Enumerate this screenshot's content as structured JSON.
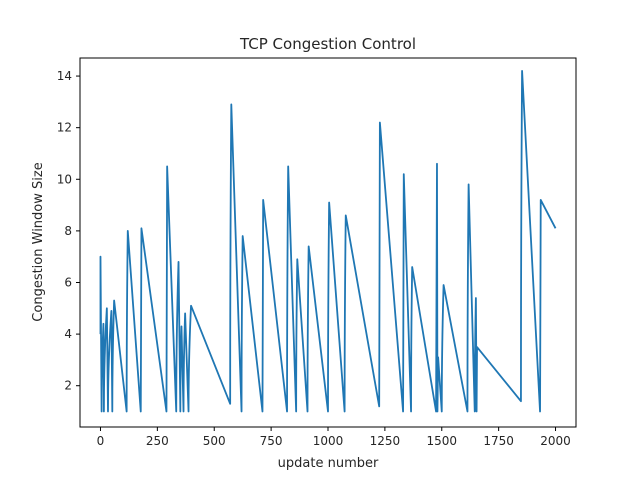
{
  "chart_data": {
    "type": "line",
    "title": "TCP Congestion Control",
    "xlabel": "update number",
    "ylabel": "Congestion Window Size",
    "xlim": [
      -90,
      2090
    ],
    "ylim": [
      0.4,
      14.7
    ],
    "x_ticks": [
      0,
      250,
      500,
      750,
      1000,
      1250,
      1500,
      1750,
      2000
    ],
    "y_ticks": [
      2,
      4,
      6,
      8,
      10,
      12,
      14
    ],
    "grid": false,
    "line_color": "#1f77b4",
    "cycles": [
      [
        0,
        4.0
      ],
      [
        0,
        7.0
      ],
      [
        5,
        1.0
      ],
      [
        13,
        4.4
      ],
      [
        15,
        1.0
      ],
      [
        28,
        5.0
      ],
      [
        33,
        1.0
      ],
      [
        48,
        4.9
      ],
      [
        52,
        1.0
      ],
      [
        60,
        5.3
      ],
      [
        115,
        1.0
      ],
      [
        120,
        8.0
      ],
      [
        177,
        1.0
      ],
      [
        180,
        8.1
      ],
      [
        290,
        1.0
      ],
      [
        293,
        10.5
      ],
      [
        333,
        1.0
      ],
      [
        343,
        6.8
      ],
      [
        351,
        1.0
      ],
      [
        356,
        4.3
      ],
      [
        365,
        1.0
      ],
      [
        372,
        4.8
      ],
      [
        387,
        1.0
      ],
      [
        398,
        5.1
      ],
      [
        570,
        1.3
      ],
      [
        575,
        12.9
      ],
      [
        620,
        1.0
      ],
      [
        625,
        7.8
      ],
      [
        712,
        1.0
      ],
      [
        715,
        9.2
      ],
      [
        820,
        1.0
      ],
      [
        825,
        10.5
      ],
      [
        860,
        1.0
      ],
      [
        865,
        6.9
      ],
      [
        910,
        1.0
      ],
      [
        915,
        7.4
      ],
      [
        1000,
        1.0
      ],
      [
        1005,
        9.1
      ],
      [
        1073,
        1.0
      ],
      [
        1078,
        8.6
      ],
      [
        1225,
        1.2
      ],
      [
        1228,
        12.2
      ],
      [
        1330,
        1.0
      ],
      [
        1333,
        10.2
      ],
      [
        1365,
        1.0
      ],
      [
        1370,
        6.6
      ],
      [
        1475,
        1.0
      ],
      [
        1479,
        10.6
      ],
      [
        1481,
        1.0
      ],
      [
        1484,
        3.1
      ],
      [
        1500,
        1.0
      ],
      [
        1508,
        5.9
      ],
      [
        1613,
        1.0
      ],
      [
        1618,
        9.8
      ],
      [
        1645,
        1.0
      ],
      [
        1650,
        5.4
      ],
      [
        1653,
        1.0
      ],
      [
        1655,
        3.5
      ],
      [
        1848,
        1.4
      ],
      [
        1853,
        14.2
      ],
      [
        1932,
        1.0
      ],
      [
        1935,
        9.2
      ],
      [
        2000,
        8.1
      ]
    ]
  }
}
